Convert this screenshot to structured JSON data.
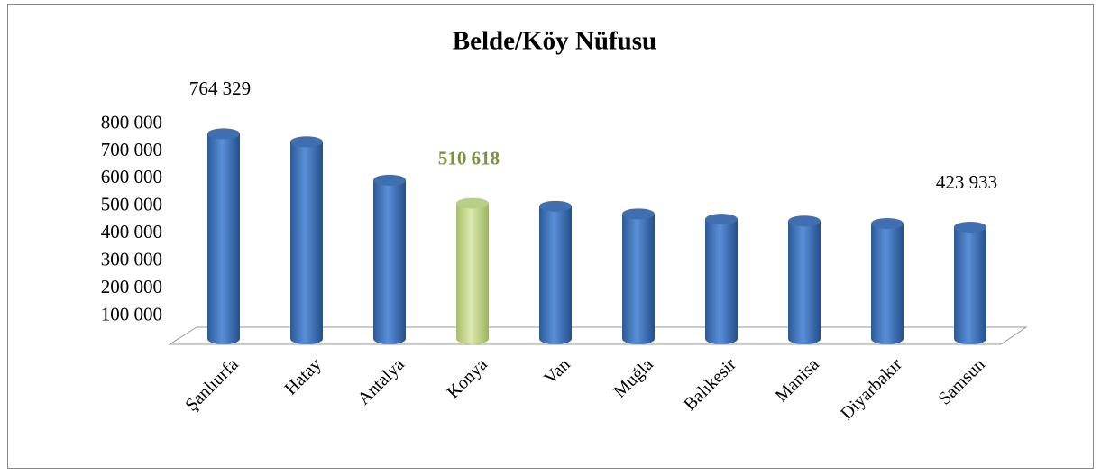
{
  "chart_data": {
    "type": "bar",
    "title": "Belde/Köy Nüfusu",
    "categories": [
      "Şanlıurfa",
      "Hatay",
      "Antalya",
      "Konya",
      "Van",
      "Muğla",
      "Balıkesir",
      "Manisa",
      "Diyarbakır",
      "Samsun"
    ],
    "values": [
      764329,
      735000,
      595000,
      510618,
      500000,
      472000,
      453000,
      446000,
      437000,
      423933
    ],
    "value_labels": [
      "764 329",
      null,
      null,
      "510 618",
      null,
      null,
      null,
      null,
      null,
      "423 933"
    ],
    "color": "#4f81bd",
    "colors": [
      "#4f81bd",
      "#4f81bd",
      "#4f81bd",
      "#c3d69b",
      "#4f81bd",
      "#4f81bd",
      "#4f81bd",
      "#4f81bd",
      "#4f81bd",
      "#4f81bd"
    ],
    "highlight_label_color": "#77933c",
    "ylim": [
      0,
      800000
    ],
    "yticks": [
      {
        "value": 100000,
        "label": "100 000"
      },
      {
        "value": 200000,
        "label": "200 000"
      },
      {
        "value": 300000,
        "label": "300 000"
      },
      {
        "value": 400000,
        "label": "400 000"
      },
      {
        "value": 500000,
        "label": "500 000"
      },
      {
        "value": 600000,
        "label": "600 000"
      },
      {
        "value": 700000,
        "label": "700 000"
      },
      {
        "value": 800000,
        "label": "800 000"
      }
    ],
    "grid": false
  }
}
